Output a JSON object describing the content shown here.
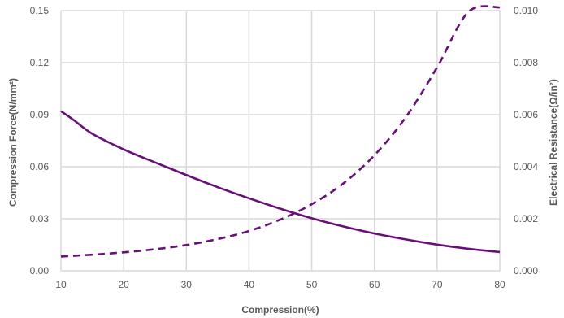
{
  "chart_data": {
    "type": "line",
    "title": "",
    "xlabel": "Compression(%)",
    "ylabel_left": "Compression Force(N/mm²)",
    "ylabel_right": "Electrical Resistance(Ω/in²)",
    "xlim": [
      10,
      80
    ],
    "ylim_left": [
      0,
      0.15
    ],
    "ylim_right": [
      0,
      0.01
    ],
    "x_ticks": [
      "10",
      "20",
      "30",
      "40",
      "50",
      "60",
      "70",
      "80"
    ],
    "y_left_ticks": [
      "0.00",
      "0.03",
      "0.06",
      "0.09",
      "0.12",
      "0.15"
    ],
    "y_right_ticks": [
      "0.000",
      "0.002",
      "0.004",
      "0.006",
      "0.008",
      "0.010"
    ],
    "grid": true,
    "legend": "none",
    "series": [
      {
        "axis": "left",
        "style": "solid",
        "color": "#6a0f7a",
        "x": [
          10,
          12,
          15,
          20,
          25,
          30,
          35,
          40,
          45,
          50,
          55,
          60,
          65,
          70,
          75,
          80
        ],
        "y": [
          0.092,
          0.087,
          0.079,
          0.07,
          0.0625,
          0.0552,
          0.0482,
          0.0418,
          0.0358,
          0.0303,
          0.0256,
          0.0215,
          0.0181,
          0.0151,
          0.0127,
          0.0108
        ]
      },
      {
        "axis": "right",
        "style": "dashed",
        "color": "#6a0f7a",
        "x": [
          10,
          15,
          20,
          25,
          30,
          35,
          40,
          45,
          50,
          55,
          60,
          65,
          70,
          75,
          80
        ],
        "y": [
          0.00055,
          0.00062,
          0.00071,
          0.00083,
          0.00099,
          0.00122,
          0.00153,
          0.00197,
          0.00256,
          0.00335,
          0.00444,
          0.0059,
          0.00782,
          0.00995,
          0.0102
        ]
      }
    ]
  }
}
